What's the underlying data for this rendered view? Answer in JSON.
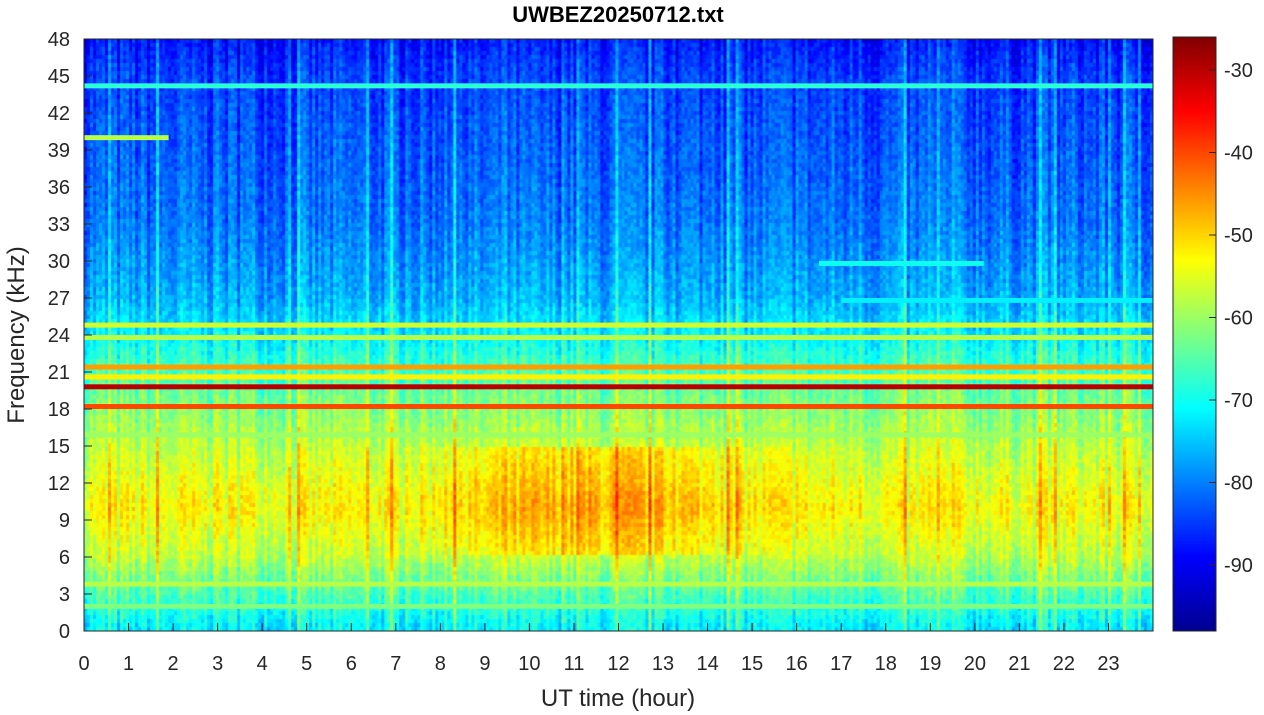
{
  "chart_data": {
    "type": "heatmap",
    "title": "UWBEZ20250712.txt",
    "xlabel": "UT time (hour)",
    "ylabel": "Frequency (kHz)",
    "xlim": [
      0,
      24
    ],
    "ylim": [
      0,
      48
    ],
    "x_ticks": [
      0,
      1,
      2,
      3,
      4,
      5,
      6,
      7,
      8,
      9,
      10,
      11,
      12,
      13,
      14,
      15,
      16,
      17,
      18,
      19,
      20,
      21,
      22,
      23
    ],
    "y_ticks": [
      0,
      3,
      6,
      9,
      12,
      15,
      18,
      21,
      24,
      27,
      30,
      33,
      36,
      39,
      42,
      45,
      48
    ],
    "colorbar": {
      "colormap": "jet",
      "range": [
        -98,
        -26
      ],
      "ticks": [
        -90,
        -80,
        -70,
        -60,
        -50,
        -40,
        -30
      ]
    },
    "background_profile": [
      {
        "freq": 0.5,
        "level": -72
      },
      {
        "freq": 3,
        "level": -66
      },
      {
        "freq": 6,
        "level": -58
      },
      {
        "freq": 10,
        "level": -53
      },
      {
        "freq": 15,
        "level": -58
      },
      {
        "freq": 18,
        "level": -62
      },
      {
        "freq": 21,
        "level": -66
      },
      {
        "freq": 24,
        "level": -72
      },
      {
        "freq": 27,
        "level": -77
      },
      {
        "freq": 33,
        "level": -81
      },
      {
        "freq": 39,
        "level": -83
      },
      {
        "freq": 45,
        "level": -85
      },
      {
        "freq": 48,
        "level": -88
      }
    ],
    "transmitter_lines": [
      {
        "freq": 19.8,
        "start": 0,
        "end": 24,
        "level": -30
      },
      {
        "freq": 18.2,
        "start": 0,
        "end": 24,
        "level": -40
      },
      {
        "freq": 21.4,
        "start": 0,
        "end": 24,
        "level": -46
      },
      {
        "freq": 20.6,
        "start": 0,
        "end": 24,
        "level": -52
      },
      {
        "freq": 24.8,
        "start": 0,
        "end": 24,
        "level": -56
      },
      {
        "freq": 23.8,
        "start": 0,
        "end": 24,
        "level": -58
      },
      {
        "freq": 44.2,
        "start": 0,
        "end": 24,
        "level": -68
      },
      {
        "freq": 40.0,
        "start": 0,
        "end": 1.9,
        "level": -58
      },
      {
        "freq": 29.8,
        "start": 16.5,
        "end": 20.2,
        "level": -70
      },
      {
        "freq": 26.8,
        "start": 17,
        "end": 24,
        "level": -72
      },
      {
        "freq": 3.8,
        "start": 0,
        "end": 24,
        "level": -58
      },
      {
        "freq": 2.0,
        "start": 0,
        "end": 24,
        "level": -62
      },
      {
        "freq": 15.9,
        "start": 0,
        "end": 24,
        "level": -60
      }
    ]
  }
}
